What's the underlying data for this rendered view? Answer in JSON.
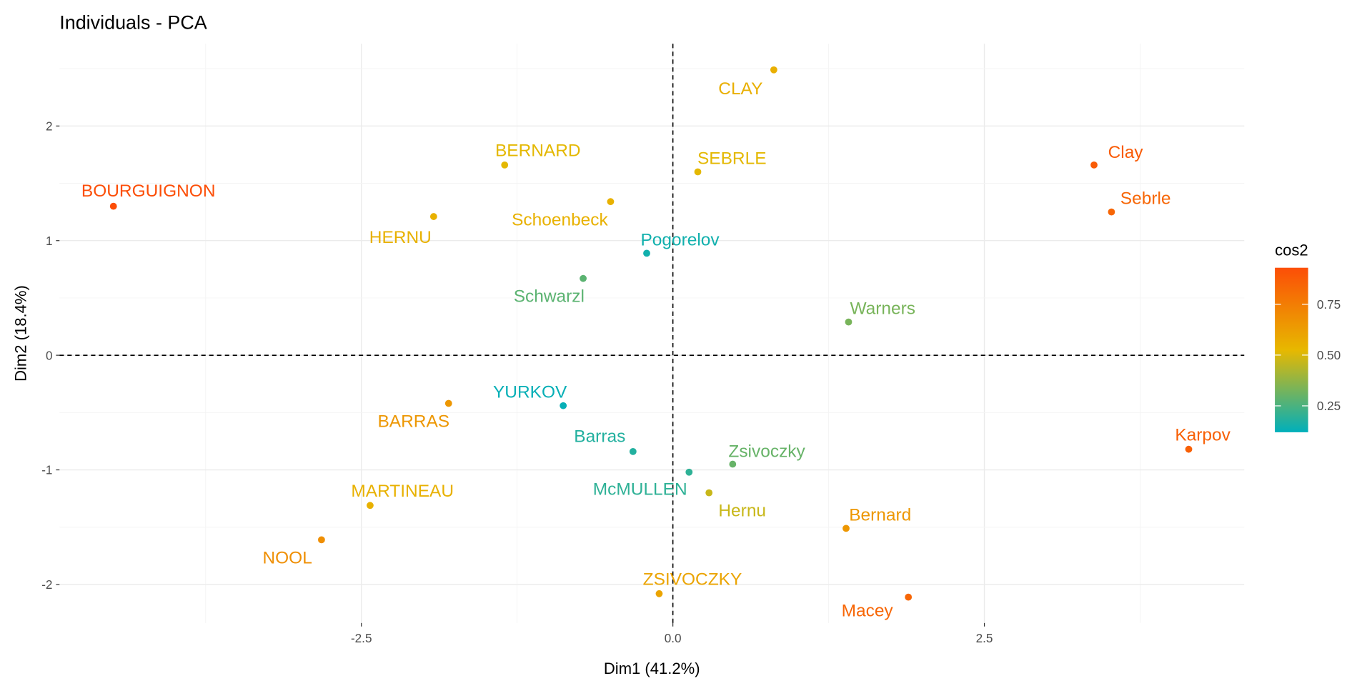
{
  "chart_data": {
    "type": "scatter",
    "title": "Individuals - PCA",
    "xlabel": "Dim1 (41.2%)",
    "ylabel": "Dim2 (18.4%)",
    "xlim": [
      -4.8,
      4.7
    ],
    "ylim": [
      -2.35,
      2.7
    ],
    "xticks": [
      -2.5,
      0.0,
      2.5
    ],
    "xtick_labels": [
      "-2.5",
      "0.0",
      "2.5"
    ],
    "yticks": [
      -2,
      -1,
      0,
      1,
      2
    ],
    "ytick_labels": [
      "-2",
      "-1",
      "0",
      "1",
      "2"
    ],
    "grid": true,
    "reference_lines": "dashed at x=0 and y=0",
    "legend": {
      "title": "cos2",
      "position": "right",
      "range": [
        0.12,
        0.93
      ],
      "ticks": [
        0.25,
        0.5,
        0.75
      ],
      "tick_labels": [
        "0.25",
        "0.50",
        "0.75"
      ],
      "colors": [
        "#00AFBB",
        "#E7B800",
        "#FC4E07"
      ]
    },
    "points": [
      {
        "label": "BOURGUIGNON",
        "x": -4.49,
        "y": 1.3,
        "cos2": 0.93
      },
      {
        "label": "HERNU",
        "x": -1.92,
        "y": 1.21,
        "cos2": 0.55
      },
      {
        "label": "BERNARD",
        "x": -1.35,
        "y": 1.66,
        "cos2": 0.52
      },
      {
        "label": "Schoenbeck",
        "x": -0.5,
        "y": 1.34,
        "cos2": 0.55
      },
      {
        "label": "CLAY",
        "x": 0.81,
        "y": 2.49,
        "cos2": 0.56
      },
      {
        "label": "SEBRLE",
        "x": 0.2,
        "y": 1.6,
        "cos2": 0.52
      },
      {
        "label": "Pogorelov",
        "x": -0.21,
        "y": 0.89,
        "cos2": 0.15
      },
      {
        "label": "Schwarzl",
        "x": -0.72,
        "y": 0.67,
        "cos2": 0.28
      },
      {
        "label": "Warners",
        "x": 1.41,
        "y": 0.29,
        "cos2": 0.33
      },
      {
        "label": "Clay",
        "x": 3.38,
        "y": 1.66,
        "cos2": 0.88
      },
      {
        "label": "Sebrle",
        "x": 3.52,
        "y": 1.25,
        "cos2": 0.84
      },
      {
        "label": "Karpov",
        "x": 4.14,
        "y": -0.82,
        "cos2": 0.86
      },
      {
        "label": "YURKOV",
        "x": -0.88,
        "y": -0.44,
        "cos2": 0.13
      },
      {
        "label": "BARRAS",
        "x": -1.8,
        "y": -0.42,
        "cos2": 0.65
      },
      {
        "label": "Barras",
        "x": -0.32,
        "y": -0.84,
        "cos2": 0.18
      },
      {
        "label": "Zsivoczky",
        "x": 0.48,
        "y": -0.95,
        "cos2": 0.3
      },
      {
        "label": "McMULLEN",
        "x": 0.13,
        "y": -1.02,
        "cos2": 0.2
      },
      {
        "label": "Hernu",
        "x": 0.29,
        "y": -1.2,
        "cos2": 0.47
      },
      {
        "label": "Bernard",
        "x": 1.39,
        "y": -1.51,
        "cos2": 0.65
      },
      {
        "label": "MARTINEAU",
        "x": -2.43,
        "y": -1.31,
        "cos2": 0.55
      },
      {
        "label": "NOOL",
        "x": -2.82,
        "y": -1.61,
        "cos2": 0.68
      },
      {
        "label": "ZSIVOCZKY",
        "x": -0.11,
        "y": -2.08,
        "cos2": 0.6
      },
      {
        "label": "Macey",
        "x": 1.89,
        "y": -2.11,
        "cos2": 0.84
      }
    ]
  }
}
